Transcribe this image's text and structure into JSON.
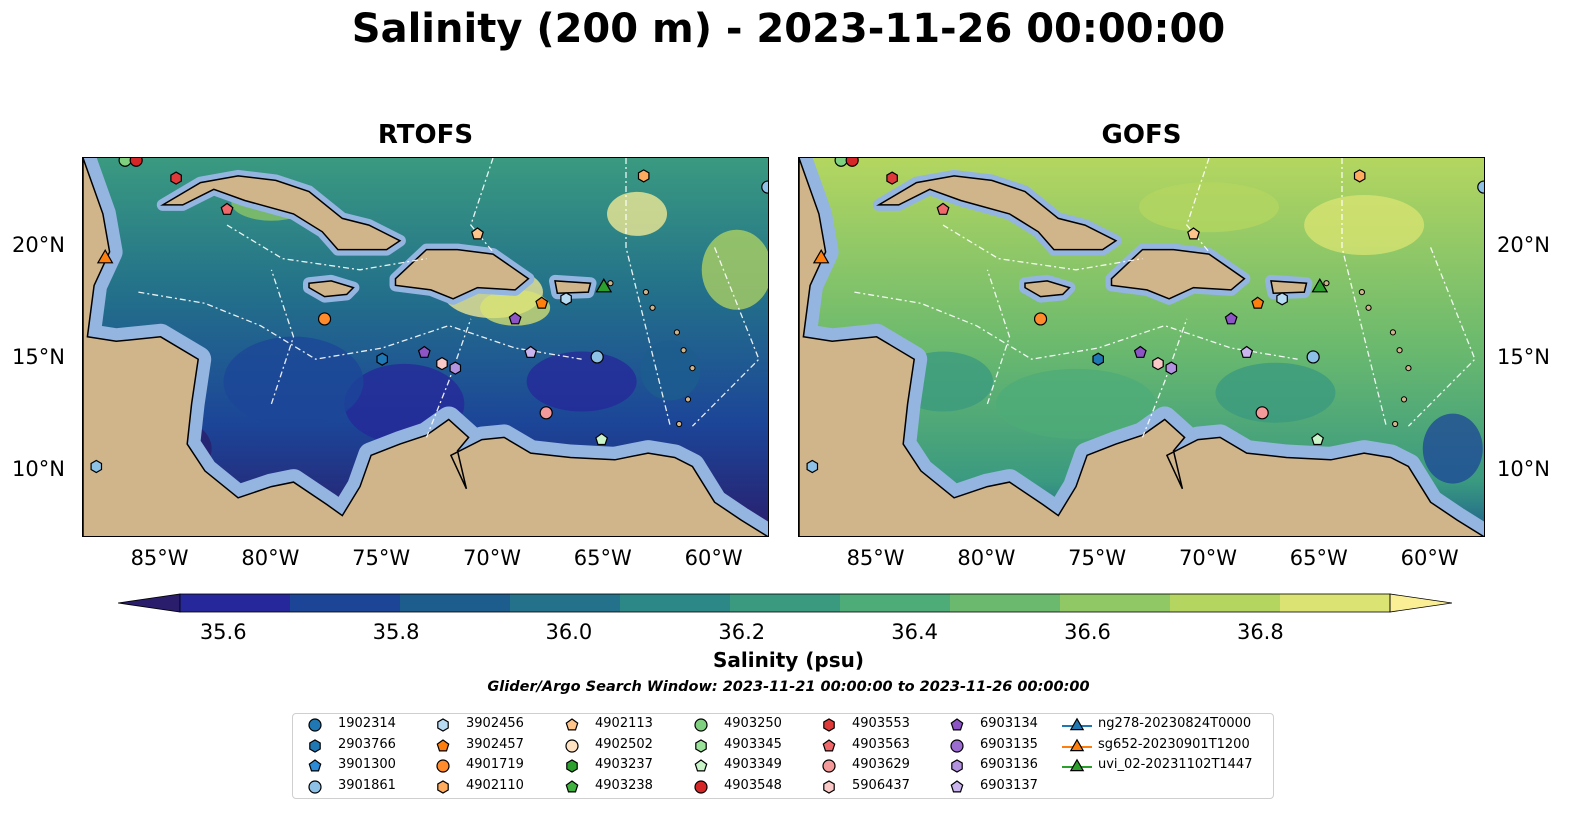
{
  "title": "Salinity (200 m) - 2023-11-26 00:00:00",
  "panels": [
    {
      "id": "rtofs",
      "title": "RTOFS"
    },
    {
      "id": "gofs",
      "title": "GOFS"
    }
  ],
  "axes": {
    "x_ticks": [
      "85°W",
      "80°W",
      "75°W",
      "70°W",
      "65°W",
      "60°W"
    ],
    "y_ticks": [
      "20°N",
      "15°N",
      "10°N"
    ],
    "lon_range": [
      -88.5,
      -57.5
    ],
    "lat_range": [
      7,
      24
    ]
  },
  "colorbar": {
    "label": "Salinity (psu)",
    "ticks": [
      "35.6",
      "35.8",
      "36.0",
      "36.2",
      "36.4",
      "36.6",
      "36.8"
    ],
    "range": [
      35.55,
      36.95
    ],
    "colors": [
      "#2a1d6b",
      "#26279a",
      "#1c4598",
      "#1c5d8e",
      "#23718a",
      "#2c8886",
      "#3a9a80",
      "#4dac78",
      "#6ab96e",
      "#8fc864",
      "#b4d660",
      "#dbe472",
      "#fbef96"
    ]
  },
  "search_window": "Glider/Argo Search Window: 2023-11-21 00:00:00 to 2023-11-26 00:00:00",
  "legend": [
    {
      "label": "1902314",
      "color": "#1f77b4",
      "shape": "circle"
    },
    {
      "label": "2903766",
      "color": "#1f77b4",
      "shape": "hexagon"
    },
    {
      "label": "3901300",
      "color": "#2b8bd6",
      "shape": "pentagon"
    },
    {
      "label": "3901861",
      "color": "#8ec1e6",
      "shape": "circle"
    },
    {
      "label": "3902456",
      "color": "#b7dbf3",
      "shape": "hexagon"
    },
    {
      "label": "3902457",
      "color": "#ff7f0e",
      "shape": "pentagon"
    },
    {
      "label": "4901719",
      "color": "#ff8b2c",
      "shape": "circle"
    },
    {
      "label": "4902110",
      "color": "#ffac5e",
      "shape": "hexagon"
    },
    {
      "label": "4902113",
      "color": "#ffc48a",
      "shape": "pentagon"
    },
    {
      "label": "4902502",
      "color": "#ffe2c2",
      "shape": "circle"
    },
    {
      "label": "4903237",
      "color": "#2ca02c",
      "shape": "hexagon"
    },
    {
      "label": "4903238",
      "color": "#3fb23f",
      "shape": "pentagon"
    },
    {
      "label": "4903250",
      "color": "#7fd07f",
      "shape": "circle"
    },
    {
      "label": "4903345",
      "color": "#9be39b",
      "shape": "hexagon"
    },
    {
      "label": "4903349",
      "color": "#c9f5c9",
      "shape": "pentagon"
    },
    {
      "label": "4903548",
      "color": "#d62728",
      "shape": "circle"
    },
    {
      "label": "4903553",
      "color": "#e0393a",
      "shape": "hexagon"
    },
    {
      "label": "4903563",
      "color": "#f0686a",
      "shape": "pentagon"
    },
    {
      "label": "4903629",
      "color": "#f49a9a",
      "shape": "circle"
    },
    {
      "label": "5906437",
      "color": "#fbc8c8",
      "shape": "hexagon"
    },
    {
      "label": "6903134",
      "color": "#8c54c4",
      "shape": "pentagon"
    },
    {
      "label": "6903135",
      "color": "#9c6dd0",
      "shape": "circle"
    },
    {
      "label": "6903136",
      "color": "#b393e0",
      "shape": "hexagon"
    },
    {
      "label": "6903137",
      "color": "#cbb5ee",
      "shape": "pentagon"
    },
    {
      "label": "ng278-20230824T0000",
      "color": "#1f77b4",
      "shape": "triangle"
    },
    {
      "label": "sg652-20230901T1200",
      "color": "#ff7f0e",
      "shape": "triangle"
    },
    {
      "label": "uvi_02-20231102T1447",
      "color": "#2ca02c",
      "shape": "triangle"
    }
  ],
  "markers": [
    {
      "lon": -86.6,
      "lat": 23.9,
      "color": "#7fd07f",
      "shape": "circle"
    },
    {
      "lon": -86.1,
      "lat": 23.9,
      "color": "#d62728",
      "shape": "circle"
    },
    {
      "lon": -84.3,
      "lat": 23.1,
      "color": "#e0393a",
      "shape": "hexagon"
    },
    {
      "lon": -82.0,
      "lat": 21.7,
      "color": "#f0686a",
      "shape": "pentagon"
    },
    {
      "lon": -63.2,
      "lat": 23.2,
      "color": "#ffac5e",
      "shape": "hexagon"
    },
    {
      "lon": -57.6,
      "lat": 22.7,
      "color": "#8ec1e6",
      "shape": "circle"
    },
    {
      "lon": -70.7,
      "lat": 20.6,
      "color": "#ffc48a",
      "shape": "pentagon"
    },
    {
      "lon": -87.5,
      "lat": 19.5,
      "color": "#ff7f0e",
      "shape": "triangle"
    },
    {
      "lon": -67.8,
      "lat": 17.5,
      "color": "#ff7f0e",
      "shape": "pentagon"
    },
    {
      "lon": -66.7,
      "lat": 17.7,
      "color": "#b7dbf3",
      "shape": "hexagon"
    },
    {
      "lon": -65.0,
      "lat": 18.2,
      "color": "#2ca02c",
      "shape": "triangle"
    },
    {
      "lon": -77.6,
      "lat": 16.8,
      "color": "#ff8b2c",
      "shape": "circle"
    },
    {
      "lon": -69.0,
      "lat": 16.8,
      "color": "#8c54c4",
      "shape": "pentagon"
    },
    {
      "lon": -75.0,
      "lat": 15.0,
      "color": "#1f77b4",
      "shape": "hexagon"
    },
    {
      "lon": -73.1,
      "lat": 15.3,
      "color": "#8c54c4",
      "shape": "pentagon"
    },
    {
      "lon": -72.3,
      "lat": 14.8,
      "color": "#fbc8c8",
      "shape": "hexagon"
    },
    {
      "lon": -71.7,
      "lat": 14.6,
      "color": "#b393e0",
      "shape": "hexagon"
    },
    {
      "lon": -68.3,
      "lat": 15.3,
      "color": "#cbb5ee",
      "shape": "pentagon"
    },
    {
      "lon": -65.3,
      "lat": 15.1,
      "color": "#8ec1e6",
      "shape": "circle"
    },
    {
      "lon": -67.6,
      "lat": 12.6,
      "color": "#f49a9a",
      "shape": "circle"
    },
    {
      "lon": -65.1,
      "lat": 11.4,
      "color": "#c9f5c9",
      "shape": "pentagon"
    },
    {
      "lon": -87.9,
      "lat": 10.2,
      "color": "#8ec1e6",
      "shape": "hexagon"
    }
  ]
}
